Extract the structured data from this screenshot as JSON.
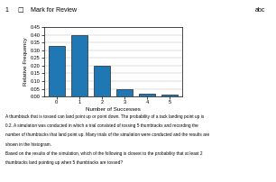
{
  "chart_data": {
    "type": "bar",
    "x": [
      0,
      1,
      2,
      3,
      4,
      5
    ],
    "values": [
      0.33,
      0.4,
      0.2,
      0.05,
      0.02,
      0.01
    ],
    "xlabel": "Number of Successes",
    "ylabel": "Relative Frequency",
    "xlim": [
      -0.55,
      5.55
    ],
    "xticks": [
      0,
      1,
      2,
      3,
      4,
      5
    ],
    "ylim": [
      0,
      0.45
    ],
    "yticks": [
      {
        "value": 0,
        "label": "0.00"
      },
      0.05,
      {
        "value": 0.1,
        "label": "0.10"
      },
      0.15,
      {
        "value": 0.2,
        "label": "0.20"
      },
      0.25,
      {
        "value": 0.3,
        "label": "0.30"
      },
      0.35,
      {
        "value": 0.4,
        "label": "0.40"
      },
      0.45
    ],
    "grid": "y",
    "annotations": [
      "1",
      "□",
      "Mark for Review",
      "abc",
      "A thumbtack that is tossed can land point up or point down. The probability of a tack landing point up is",
      "0.2. A simulation was conducted in which a trial consisted of tossing 5 thumbtacks and recording the",
      "number of thumbtacks that land point up. Many trials of the simulation were conducted and the results are",
      "shown in the histogram.",
      "Based on the results of the simulation, which of the following is closest to the probability that at least 2",
      "thumbtacks land pointing up when 5 thumbtacks are tossed?"
    ]
  }
}
